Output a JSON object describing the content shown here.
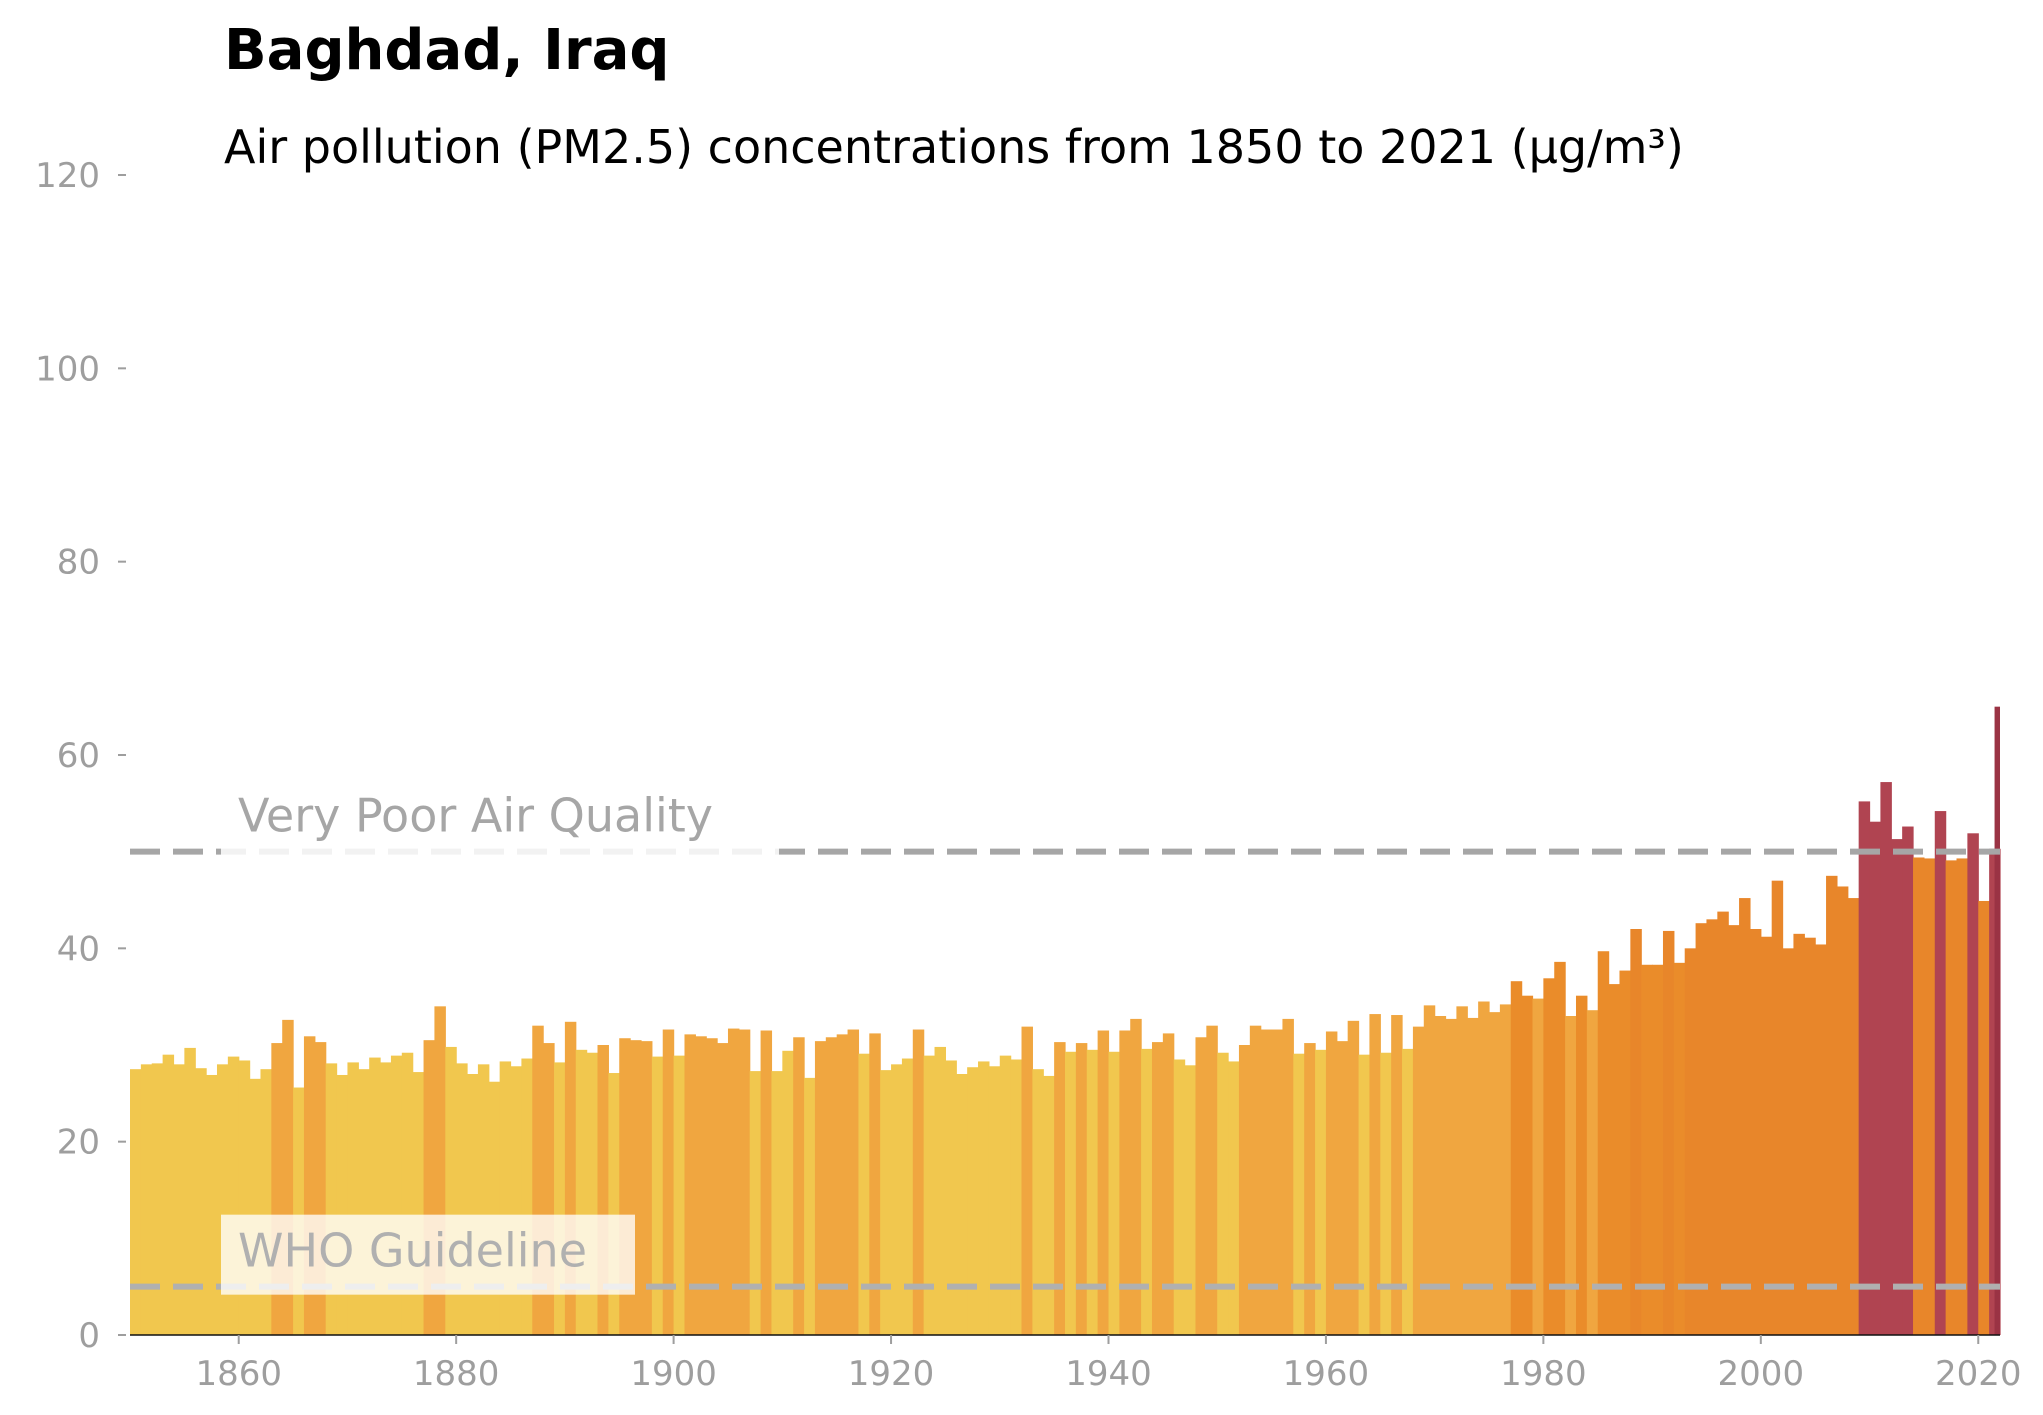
{
  "chart_data": {
    "type": "bar",
    "title": "Baghdad, Iraq",
    "subtitle": "Air pollution (PM2.5) concentrations from 1850 to 2021 (µg/m³)",
    "x_start": 1850,
    "x_end": 2021,
    "xlim": [
      1850,
      2022
    ],
    "ylim": [
      0,
      120
    ],
    "y_ticks": [
      "0",
      "20",
      "40",
      "60",
      "80",
      "100",
      "120"
    ],
    "x_ticks": [
      "1860",
      "1880",
      "1900",
      "1920",
      "1940",
      "1960",
      "1980",
      "2000",
      "2020"
    ],
    "values": [
      27.5,
      28.0,
      28.1,
      29.0,
      28.0,
      29.7,
      27.6,
      26.9,
      28.0,
      28.8,
      28.4,
      26.5,
      27.5,
      30.2,
      32.6,
      25.6,
      30.9,
      30.3,
      28.1,
      26.9,
      28.2,
      27.5,
      28.7,
      28.2,
      28.9,
      29.2,
      27.2,
      30.5,
      34.0,
      29.8,
      28.1,
      27.0,
      28.0,
      26.2,
      28.3,
      27.8,
      28.6,
      32.0,
      30.2,
      28.2,
      32.4,
      29.5,
      29.2,
      30.0,
      27.1,
      30.7,
      30.5,
      30.4,
      28.8,
      31.6,
      28.9,
      31.1,
      30.9,
      30.7,
      30.2,
      31.7,
      31.6,
      27.3,
      31.5,
      27.3,
      29.4,
      30.8,
      26.6,
      30.4,
      30.8,
      31.1,
      31.6,
      29.1,
      31.2,
      27.4,
      28.0,
      28.6,
      31.6,
      28.9,
      29.8,
      28.4,
      27.0,
      27.7,
      28.3,
      27.8,
      28.9,
      28.5,
      31.9,
      27.5,
      26.8,
      30.3,
      29.3,
      30.2,
      29.5,
      31.5,
      29.3,
      31.5,
      32.7,
      29.6,
      30.3,
      31.2,
      28.5,
      27.9,
      30.8,
      32.0,
      29.2,
      28.3,
      30.0,
      32.0,
      31.6,
      31.6,
      32.7,
      29.1,
      30.2,
      29.5,
      31.4,
      30.4,
      32.5,
      29.0,
      33.2,
      29.2,
      33.1,
      29.6,
      31.9,
      34.1,
      33.0,
      32.7,
      34.0,
      32.8,
      34.5,
      33.4,
      34.2,
      36.6,
      35.1,
      34.8,
      36.9,
      38.6,
      33.0,
      35.1,
      33.6,
      39.7,
      36.3,
      37.7,
      42.0,
      38.3,
      38.3,
      41.8,
      38.5,
      40.0,
      42.6,
      43.0,
      43.8,
      42.4,
      45.2,
      42.0,
      41.2,
      47.0,
      40.0,
      41.5,
      41.1,
      40.4,
      47.5,
      46.4,
      45.2,
      55.2,
      53.1,
      57.2,
      51.3,
      52.6,
      49.4,
      49.3,
      54.2,
      49.1,
      49.3,
      51.9,
      44.9,
      50.3
    ],
    "extra_bar": {
      "x": 2021.5,
      "value": 65.0
    },
    "color_bins": [
      {
        "range": "< 30",
        "color": "#f1c74e"
      },
      {
        "range": "30-35",
        "color": "#f0a640"
      },
      {
        "range": "35-40",
        "color": "#ea8c2a"
      },
      {
        "range": "40-50",
        "color": "#e8862a"
      },
      {
        "range": "50-60",
        "color": "#b04451"
      },
      {
        "range": ">= 60",
        "color": "#9a3344"
      }
    ],
    "reference_lines": [
      {
        "label": "Very Poor Air Quality",
        "value": 50,
        "color": "#a6a6a6"
      },
      {
        "label": "WHO Guideline",
        "value": 5,
        "color": "#b0b0b0"
      }
    ],
    "grid": false,
    "legend": "none",
    "axis_color": "#9e9e9e"
  }
}
